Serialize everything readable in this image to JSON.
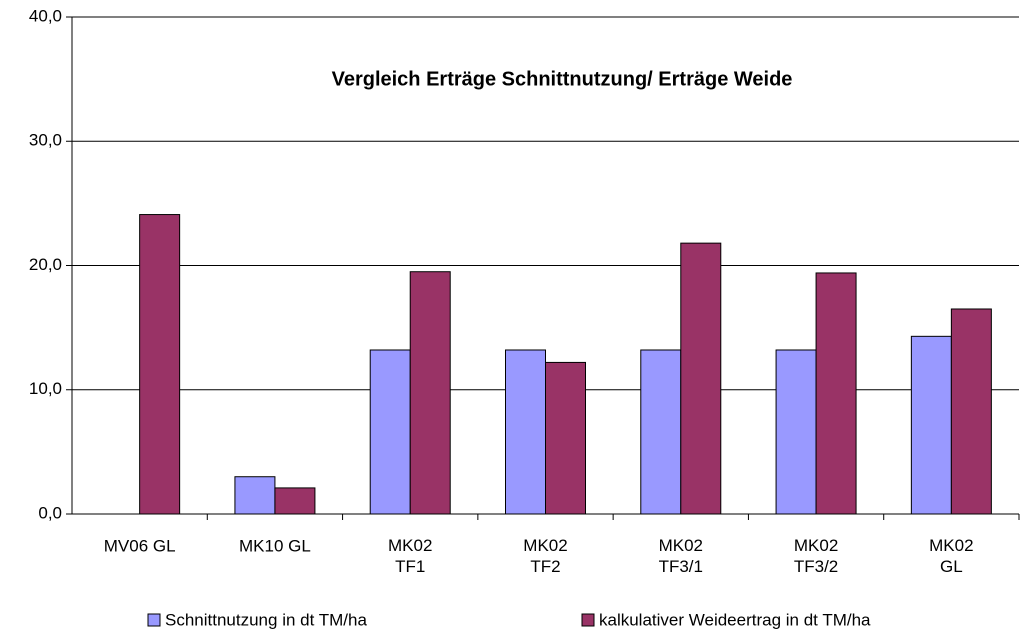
{
  "chart_data": {
    "type": "bar",
    "title": "Vergleich Erträge Schnittnutzung/ Erträge Weide",
    "categories": [
      "MV06 GL",
      "MK10 GL",
      "MK02\nTF1",
      "MK02\nTF2",
      "MK02\nTF3/1",
      "MK02\nTF3/2",
      "MK02\nGL"
    ],
    "series": [
      {
        "name": "Schnittnutzung in dt TM/ha",
        "color": "#9999ff",
        "values": [
          null,
          3.0,
          13.2,
          13.2,
          13.2,
          13.2,
          14.3
        ]
      },
      {
        "name": "kalkulativer Weideertrag in dt TM/ha",
        "color": "#993366",
        "values": [
          24.1,
          2.1,
          19.5,
          12.2,
          21.8,
          19.4,
          16.5
        ]
      }
    ],
    "ylim": [
      0,
      40
    ],
    "yticks": [
      {
        "value": 0,
        "label": "0,0"
      },
      {
        "value": 10,
        "label": "10,0"
      },
      {
        "value": 20,
        "label": "20,0"
      },
      {
        "value": 30,
        "label": "30,0"
      },
      {
        "value": 40,
        "label": "40,0"
      }
    ],
    "grid": true,
    "legend": "bottom"
  }
}
